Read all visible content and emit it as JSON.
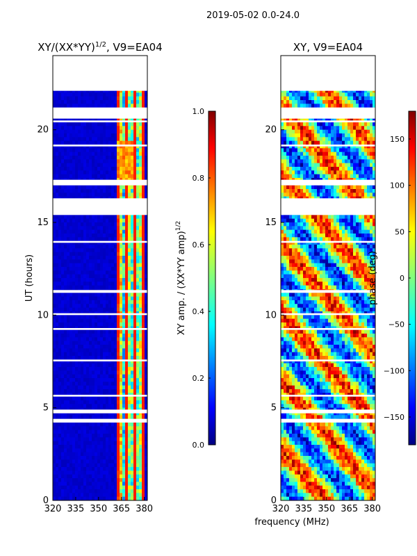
{
  "suptitle": "2019-05-02 0.0-24.0",
  "xlabel": "frequency (MHz)",
  "chart_data": [
    {
      "type": "heatmap",
      "title_main": "XY/(XX*YY)",
      "title_exp": "1/2",
      "title_tail": ", V9=EA04",
      "ylabel": "UT (hours)",
      "xlim": [
        320,
        382
      ],
      "ylim": [
        0,
        24
      ],
      "xticks": [
        "320",
        "335",
        "350",
        "365",
        "380"
      ],
      "yticks": [
        "0",
        "5",
        "10",
        "15",
        "20"
      ],
      "colorbar": {
        "label_main": "XY amp. / (XX*YY amp)",
        "label_exp": "1/2",
        "min": 0,
        "max": 1,
        "ticks": [
          "0.0",
          "0.2",
          "0.4",
          "0.6",
          "0.8",
          "1.0"
        ]
      },
      "description": "amplitude ratio, mostly low (~0.05) below 360 MHz with structured higher values 362-380 MHz"
    },
    {
      "type": "heatmap",
      "title": "XY, V9=EA04",
      "xlim": [
        320,
        382
      ],
      "ylim": [
        0,
        24
      ],
      "xticks": [
        "320",
        "335",
        "350",
        "365",
        "380"
      ],
      "yticks": [
        "0",
        "5",
        "10",
        "15",
        "20"
      ],
      "colorbar": {
        "label": "phase (deg)",
        "min": -180,
        "max": 180,
        "ticks": [
          "−150",
          "−100",
          "−50",
          "0",
          "50",
          "100",
          "150"
        ]
      },
      "description": "XY phase in degrees, noisy full range"
    }
  ],
  "gaps_hours": [
    [
      22.1,
      24.0
    ],
    [
      21.2,
      20.6
    ],
    [
      20.5,
      20.4
    ],
    [
      19.1,
      19.2
    ],
    [
      17.3,
      17.0
    ],
    [
      16.3,
      15.4
    ],
    [
      14.0,
      13.9
    ],
    [
      11.35,
      11.2
    ],
    [
      10.1,
      10.0
    ],
    [
      9.3,
      9.2
    ],
    [
      7.6,
      7.5
    ],
    [
      5.7,
      5.6
    ],
    [
      4.9,
      4.7
    ],
    [
      4.4,
      4.2
    ]
  ],
  "panel_colorbar": [
    "#000080",
    "#0000ff",
    "#0080ff",
    "#00ffff",
    "#80ff80",
    "#ffff00",
    "#ff8000",
    "#ff0000",
    "#800000"
  ]
}
